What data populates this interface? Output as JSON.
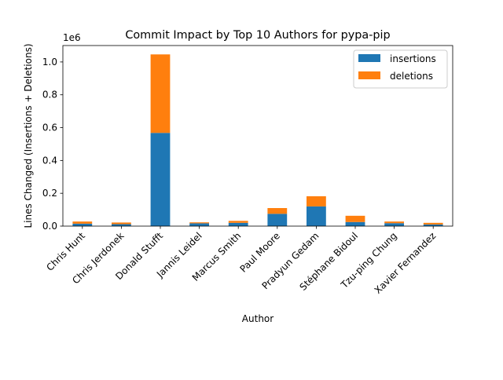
{
  "chart_data": {
    "type": "bar",
    "stacked": true,
    "title": "Commit Impact by Top 10 Authors for pypa-pip",
    "xlabel": "Author",
    "ylabel": "Lines Changed (Insertions + Deletions)",
    "y_offset_label": "1e6",
    "y_scale": 1000000,
    "ylim": [
      0,
      1100000
    ],
    "yticks": [
      0,
      200000,
      400000,
      600000,
      800000,
      1000000
    ],
    "ytick_labels": [
      "0.0",
      "0.2",
      "0.4",
      "0.6",
      "0.8",
      "1.0"
    ],
    "grid": false,
    "legend_position": "top-right",
    "categories": [
      "Chris Hunt",
      "Chris Jerdonek",
      "Donald Stufft",
      "Jannis Leidel",
      "Marcus Smith",
      "Paul Moore",
      "Pradyun Gedam",
      "Stéphane Bidoul",
      "Tzu-ping Chung",
      "Xavier Fernandez"
    ],
    "series": [
      {
        "name": "insertions",
        "color": "#1f77b4",
        "values": [
          15000,
          12000,
          568000,
          17000,
          20000,
          75000,
          120000,
          25000,
          18000,
          10000
        ]
      },
      {
        "name": "deletions",
        "color": "#ff7f0e",
        "values": [
          13000,
          10000,
          478000,
          6000,
          12000,
          35000,
          62000,
          38000,
          10000,
          10000
        ]
      }
    ]
  }
}
